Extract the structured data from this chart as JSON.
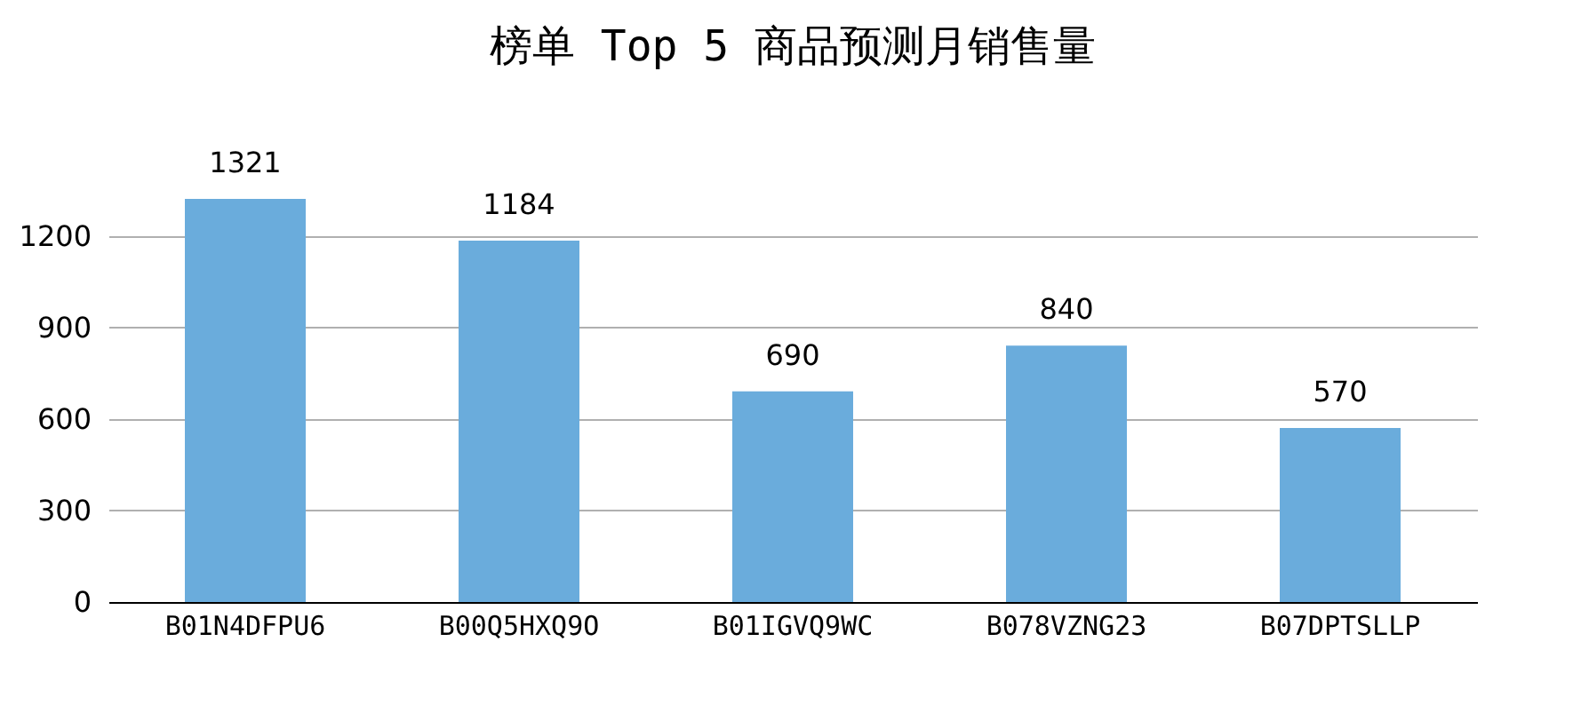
{
  "chart_data": {
    "type": "bar",
    "title": "榜单 Top 5 商品预测月销售量",
    "categories": [
      "B01N4DFPU6",
      "B00Q5HXQ9O",
      "B01IGVQ9WC",
      "B078VZNG23",
      "B07DPTSLLP"
    ],
    "values": [
      1321,
      1184,
      690,
      840,
      570
    ],
    "color": "#6aacdc",
    "ylim": [
      0,
      1321
    ],
    "yticks": [
      0,
      300,
      600,
      900,
      1200
    ],
    "grid": "y",
    "data_labels": true
  }
}
